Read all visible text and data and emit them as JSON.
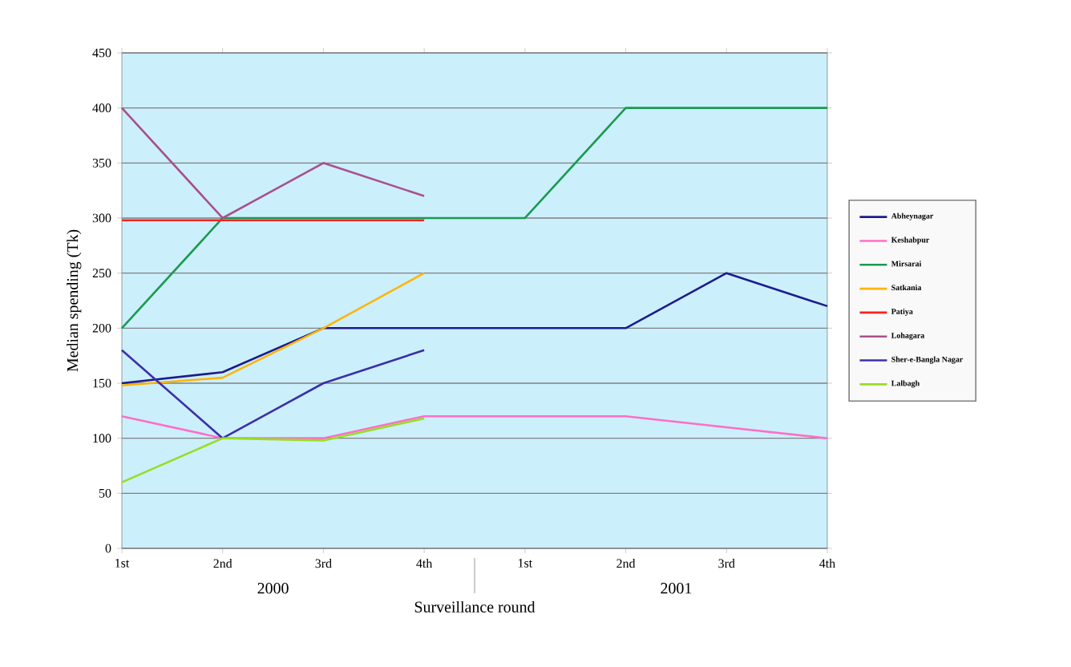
{
  "chart_data": {
    "type": "line",
    "xlabel": "Surveillance round",
    "ylabel": "Median spending (Tk)",
    "categories": [
      "1st",
      "2nd",
      "3rd",
      "4th",
      "1st",
      "2nd",
      "3rd",
      "4th"
    ],
    "series": [
      {
        "name": "Abheynagar",
        "color": "#1c1c8c",
        "values": [
          150,
          160,
          200,
          200,
          200,
          200,
          250,
          220
        ]
      },
      {
        "name": "Keshabpur",
        "color": "#ff6ec7",
        "values": [
          120,
          100,
          100,
          120,
          120,
          120,
          110,
          100
        ]
      },
      {
        "name": "Mirsarai",
        "color": "#1a9a50",
        "values": [
          200,
          300,
          300,
          300,
          300,
          400,
          400,
          400
        ]
      },
      {
        "name": "Satkania",
        "color": "#ffb400",
        "values": [
          148,
          155,
          200,
          250,
          null,
          null,
          null,
          null
        ]
      },
      {
        "name": "Patiya",
        "color": "#ff2020",
        "values": [
          298,
          298,
          298,
          298,
          null,
          null,
          null,
          null
        ]
      },
      {
        "name": "Lohagara",
        "color": "#a8508c",
        "values": [
          400,
          300,
          350,
          320,
          null,
          null,
          null,
          null
        ]
      },
      {
        "name": "Sher-e-Bangla Nagar",
        "color": "#3a30a8",
        "values": [
          180,
          100,
          150,
          180,
          null,
          null,
          null,
          null
        ]
      },
      {
        "name": "Lalbagh",
        "color": "#99dd22",
        "values": [
          60,
          100,
          98,
          118,
          null,
          null,
          null,
          null
        ]
      }
    ],
    "ylim": [
      0,
      450
    ],
    "yticks": [
      0,
      50,
      100,
      150,
      200,
      250,
      300,
      350,
      400,
      450
    ],
    "grid": "y",
    "legend": "right",
    "annotations": [
      "2000",
      "2001"
    ]
  }
}
